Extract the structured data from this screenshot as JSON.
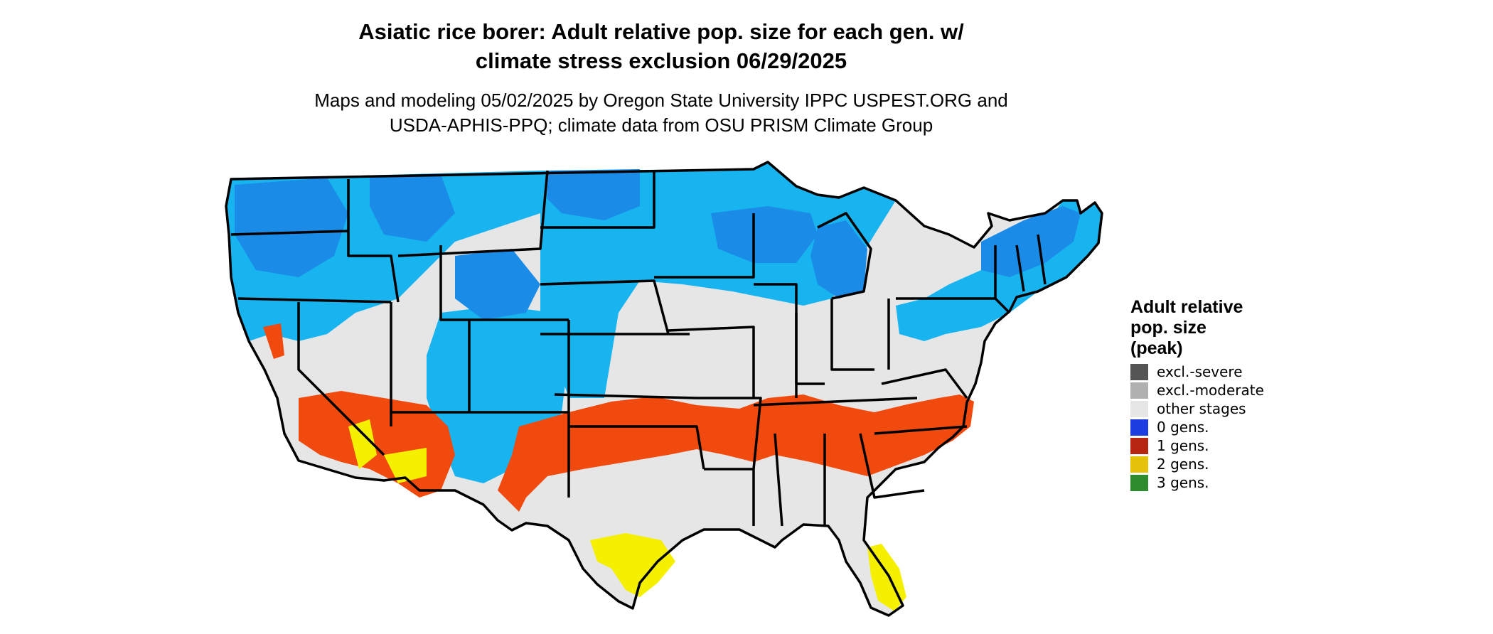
{
  "title_line1": "Asiatic rice borer: Adult relative pop. size for each gen. w/",
  "title_line2": "climate stress exclusion 06/29/2025",
  "subtitle_line1": "Maps and modeling 05/02/2025 by Oregon State University IPPC USPEST.ORG and",
  "subtitle_line2": "USDA-APHIS-PPQ; climate data from OSU PRISM Climate Group",
  "legend": {
    "title_line1": "Adult relative",
    "title_line2": "pop. size",
    "title_line3": "(peak)",
    "items": [
      {
        "label": "excl.-severe",
        "color": "#555555"
      },
      {
        "label": "excl.-moderate",
        "color": "#b0b0b0"
      },
      {
        "label": "other stages",
        "color": "#e6e6e6"
      },
      {
        "label": "0 gens.",
        "color": "#1c3ee0"
      },
      {
        "label": "1 gens.",
        "color": "#b72610"
      },
      {
        "label": "2 gens.",
        "color": "#e6c10a"
      },
      {
        "label": "3 gens.",
        "color": "#2e8b2e"
      }
    ]
  },
  "map_colors": {
    "other_stages": "#e6e6e6",
    "zero_gen_light": "#18b4f0",
    "zero_gen_mid": "#1a8ce8",
    "one_gen": "#f04a0e",
    "two_gen": "#f4f000",
    "border": "#000000"
  }
}
